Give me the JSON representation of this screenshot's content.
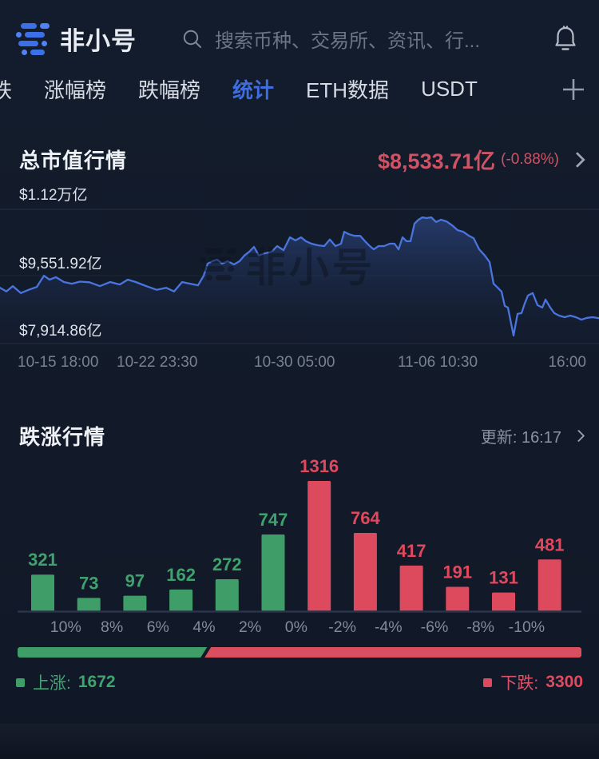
{
  "header": {
    "logo_text": "非小号",
    "search_placeholder": "搜索币种、交易所、资讯、行..."
  },
  "nav": {
    "tabs": [
      {
        "label": "跌",
        "partial": true
      },
      {
        "label": "涨幅榜"
      },
      {
        "label": "跌幅榜"
      },
      {
        "label": "统计",
        "active": true
      },
      {
        "label": "ETH数据"
      },
      {
        "label": "USDT"
      }
    ]
  },
  "market_cap": {
    "title": "总市值行情",
    "value": "$8,533.71亿",
    "change": "(-0.88%)"
  },
  "watermark_text": "非小号",
  "chart_data": [
    {
      "type": "area",
      "title": "总市值行情",
      "unit": "亿美元",
      "y_ticks": [
        "$1.12万亿",
        "$9,551.92亿",
        "$7,914.86亿"
      ],
      "y_tick_values": [
        11200,
        9551.92,
        7914.86
      ],
      "x_ticks": [
        "10-15 18:00",
        "10-22 23:30",
        "10-30 05:00",
        "11-06 10:30",
        "16:00"
      ],
      "ylim": [
        7914.86,
        11200
      ],
      "grid": true,
      "line_color": "#4a74de",
      "series": [
        {
          "name": "总市值",
          "points": [
            [
              0,
              9280
            ],
            [
              8,
              9190
            ],
            [
              16,
              9320
            ],
            [
              26,
              9150
            ],
            [
              36,
              9230
            ],
            [
              46,
              9300
            ],
            [
              55,
              9575
            ],
            [
              62,
              9480
            ],
            [
              70,
              9540
            ],
            [
              80,
              9420
            ],
            [
              90,
              9380
            ],
            [
              100,
              9430
            ],
            [
              112,
              9415
            ],
            [
              125,
              9320
            ],
            [
              138,
              9420
            ],
            [
              150,
              9360
            ],
            [
              160,
              9480
            ],
            [
              170,
              9420
            ],
            [
              183,
              9320
            ],
            [
              196,
              9230
            ],
            [
              208,
              9280
            ],
            [
              218,
              9190
            ],
            [
              228,
              9420
            ],
            [
              238,
              9380
            ],
            [
              248,
              9340
            ],
            [
              255,
              9575
            ],
            [
              260,
              9870
            ],
            [
              266,
              9930
            ],
            [
              272,
              9970
            ],
            [
              278,
              9870
            ],
            [
              285,
              9930
            ],
            [
              293,
              9850
            ],
            [
              300,
              9930
            ],
            [
              306,
              10070
            ],
            [
              312,
              10160
            ],
            [
              318,
              10280
            ],
            [
              324,
              10070
            ],
            [
              331,
              10120
            ],
            [
              340,
              10160
            ],
            [
              347,
              10300
            ],
            [
              355,
              10200
            ],
            [
              363,
              10515
            ],
            [
              370,
              10440
            ],
            [
              377,
              10515
            ],
            [
              383,
              10420
            ],
            [
              390,
              10360
            ],
            [
              398,
              10320
            ],
            [
              406,
              10300
            ],
            [
              413,
              10460
            ],
            [
              420,
              10300
            ],
            [
              427,
              10360
            ],
            [
              431,
              10650
            ],
            [
              437,
              10590
            ],
            [
              444,
              10550
            ],
            [
              451,
              10550
            ],
            [
              457,
              10420
            ],
            [
              463,
              10300
            ],
            [
              468,
              10220
            ],
            [
              474,
              10300
            ],
            [
              481,
              10300
            ],
            [
              488,
              10360
            ],
            [
              494,
              10360
            ],
            [
              499,
              10220
            ],
            [
              504,
              10515
            ],
            [
              509,
              10420
            ],
            [
              514,
              10420
            ],
            [
              519,
              10850
            ],
            [
              524,
              10945
            ],
            [
              529,
              11005
            ],
            [
              534,
              10985
            ],
            [
              540,
              11005
            ],
            [
              546,
              10890
            ],
            [
              552,
              10945
            ],
            [
              559,
              10905
            ],
            [
              566,
              10810
            ],
            [
              573,
              10690
            ],
            [
              580,
              10650
            ],
            [
              587,
              10555
            ],
            [
              593,
              10495
            ],
            [
              600,
              10220
            ],
            [
              607,
              10070
            ],
            [
              613,
              9910
            ],
            [
              618,
              9380
            ],
            [
              623,
              9285
            ],
            [
              628,
              9185
            ],
            [
              632,
              8835
            ],
            [
              636,
              8795
            ],
            [
              639,
              8500
            ],
            [
              643,
              8110
            ],
            [
              648,
              8640
            ],
            [
              653,
              8660
            ],
            [
              657,
              8895
            ],
            [
              661,
              9090
            ],
            [
              667,
              9150
            ],
            [
              673,
              8855
            ],
            [
              679,
              8795
            ],
            [
              683,
              8990
            ],
            [
              689,
              8795
            ],
            [
              694,
              8660
            ],
            [
              700,
              8600
            ],
            [
              707,
              8560
            ],
            [
              714,
              8600
            ],
            [
              721,
              8560
            ],
            [
              728,
              8500
            ],
            [
              735,
              8545
            ],
            [
              742,
              8560
            ],
            [
              750,
              8535
            ]
          ]
        }
      ]
    },
    {
      "type": "bar",
      "title": "跌涨行情",
      "values": [
        321,
        73,
        97,
        162,
        272,
        747,
        1316,
        764,
        417,
        191,
        131,
        481
      ],
      "directions": [
        "up",
        "up",
        "up",
        "up",
        "up",
        "up",
        "down",
        "down",
        "down",
        "down",
        "down",
        "down"
      ],
      "boundary_labels": [
        "10%",
        "8%",
        "6%",
        "4%",
        "2%",
        "0%",
        "-2%",
        "-4%",
        "-6%",
        "-8%",
        "-10%"
      ],
      "ylim": [
        0,
        1316
      ],
      "up_color": "#3f9e68",
      "down_color": "#dd4a5e",
      "up_label_color": "#3fa26d",
      "down_label_color": "#e0485d"
    }
  ],
  "updown": {
    "title": "跌涨行情",
    "update_label": "更新: 16:17",
    "up_label": "上涨:",
    "up_value": "1672",
    "down_label": "下跌:",
    "down_value": "3300",
    "up_ratio_pct": 33.6
  },
  "colors": {
    "accent_blue": "#3e6de0",
    "up_green": "#3f9e68",
    "down_red": "#dd4a5e",
    "mcap_red": "#cd5365",
    "background": "#121a29"
  }
}
